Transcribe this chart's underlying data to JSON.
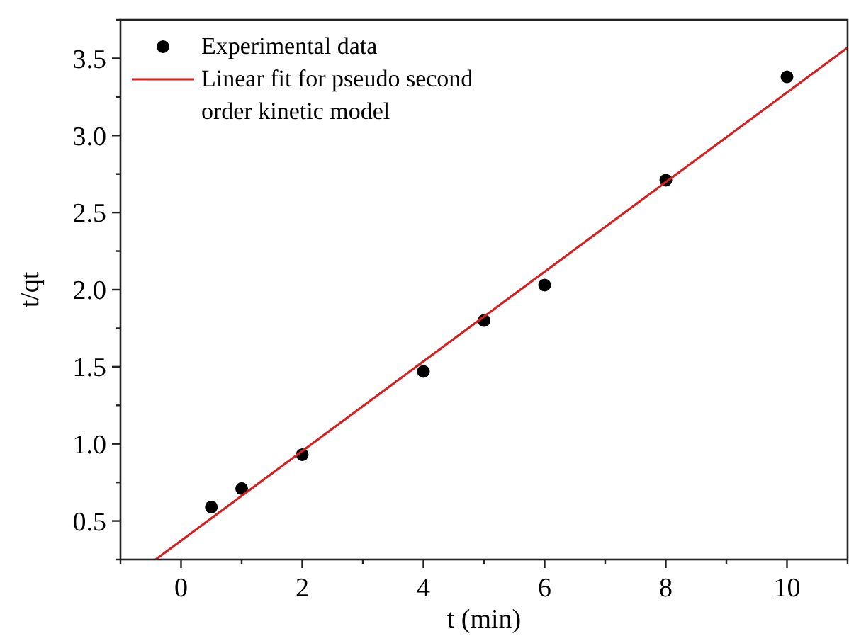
{
  "chart_data": {
    "type": "scatter",
    "xlabel": "t (min)",
    "ylabel": "t/qt",
    "xlim": [
      -1,
      11
    ],
    "ylim": [
      0.25,
      3.75
    ],
    "xticks": [
      {
        "value": -1,
        "label": null
      },
      0,
      {
        "value": 1,
        "label": null
      },
      2,
      {
        "value": 3,
        "label": null
      },
      4,
      {
        "value": 5,
        "label": null
      },
      6,
      {
        "value": 7,
        "label": null
      },
      8,
      {
        "value": 9,
        "label": null
      },
      10,
      {
        "value": 11,
        "label": null
      }
    ],
    "yticks": [
      {
        "value": 0.25,
        "label": null
      },
      {
        "value": 0.5,
        "label": "0.5"
      },
      {
        "value": 0.75,
        "label": null
      },
      {
        "value": 1,
        "label": "1.0"
      },
      {
        "value": 1.25,
        "label": null
      },
      {
        "value": 1.5,
        "label": "1.5"
      },
      {
        "value": 1.75,
        "label": null
      },
      {
        "value": 2,
        "label": "2.0"
      },
      {
        "value": 2.25,
        "label": null
      },
      {
        "value": 2.5,
        "label": "2.5"
      },
      {
        "value": 2.75,
        "label": null
      },
      {
        "value": 3,
        "label": "3.0"
      },
      {
        "value": 3.25,
        "label": null
      },
      {
        "value": 3.5,
        "label": "3.5"
      },
      {
        "value": 3.75,
        "label": null
      }
    ],
    "legend": "top left",
    "grid": false,
    "series": [
      {
        "name": "Experimental data",
        "color": "#000000",
        "marker": "circle",
        "x": [
          0.5,
          1,
          2,
          4,
          5,
          6,
          8,
          10
        ],
        "values": [
          0.59,
          0.71,
          0.93,
          1.47,
          1.8,
          2.03,
          2.71,
          3.38
        ]
      },
      {
        "name": "Linear fit for pseudo second order kinetic model",
        "type": "line",
        "color": "#d62020",
        "marker": "none",
        "line_style": "solid",
        "x": [
          -0.42,
          11
        ],
        "values": [
          0.25,
          3.57
        ]
      }
    ]
  }
}
